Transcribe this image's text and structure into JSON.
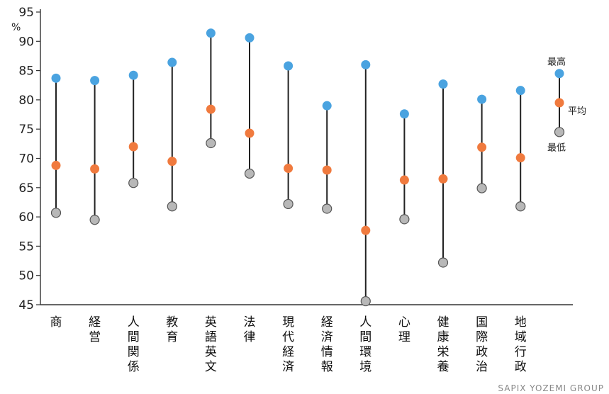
{
  "chart_data": {
    "type": "range-dot",
    "ylabel_unit": "%",
    "ylim": [
      45,
      95
    ],
    "yticks": [
      45,
      50,
      55,
      60,
      65,
      70,
      75,
      80,
      85,
      90,
      95
    ],
    "grid": false,
    "categories": [
      "商",
      "経営",
      "人間関係",
      "教育",
      "英語英文",
      "法律",
      "現代経済",
      "経済情報",
      "人間環境",
      "心理",
      "健康栄養",
      "国際政治",
      "地域行政"
    ],
    "series": [
      {
        "name": "最高",
        "color": "#4aa3e0",
        "values": [
          83.7,
          83.3,
          84.2,
          86.4,
          91.4,
          90.6,
          85.8,
          79.0,
          86.0,
          77.6,
          82.7,
          80.1,
          81.6
        ]
      },
      {
        "name": "平均",
        "color": "#f07a3e",
        "values": [
          68.8,
          68.2,
          72.0,
          69.5,
          78.4,
          74.3,
          68.3,
          68.0,
          57.7,
          66.3,
          66.5,
          71.9,
          70.1
        ]
      },
      {
        "name": "最低",
        "color": "#b8b8b8",
        "values": [
          60.7,
          59.5,
          65.8,
          61.8,
          72.6,
          67.4,
          62.2,
          61.4,
          45.6,
          59.6,
          52.2,
          64.9,
          61.8
        ]
      }
    ],
    "legend": {
      "placement": "right",
      "sample_values": {
        "max": 84.5,
        "avg": 79.5,
        "min": 74.5
      }
    }
  },
  "credit": "SAPIX YOZEMI GROUP"
}
